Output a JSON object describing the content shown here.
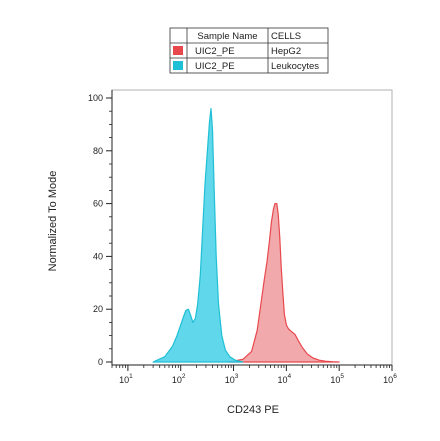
{
  "chart_data": {
    "type": "area",
    "xlabel": "CD243 PE",
    "ylabel": "Normalized To Mode",
    "x_scale": "log",
    "xlim": [
      5,
      1000000
    ],
    "ylim": [
      0,
      100
    ],
    "x_ticks": [
      {
        "base": "10",
        "exp": "1",
        "value": 10
      },
      {
        "base": "10",
        "exp": "2",
        "value": 100
      },
      {
        "base": "10",
        "exp": "3",
        "value": 1000
      },
      {
        "base": "10",
        "exp": "4",
        "value": 10000
      },
      {
        "base": "10",
        "exp": "5",
        "value": 100000
      },
      {
        "base": "10",
        "exp": "6",
        "value": 1000000
      }
    ],
    "y_ticks": [
      "0",
      "20",
      "40",
      "60",
      "80",
      "100"
    ],
    "legend": {
      "headers": [
        "Sample Name",
        "CELLS"
      ],
      "placement": "top-right"
    },
    "series": [
      {
        "sample": "UIC2_PE",
        "cells": "HepG2",
        "color": "#e8484d",
        "fill": "#f0a0a3",
        "x": [
          800,
          1500,
          2200,
          2800,
          3300,
          3800,
          4300,
          4800,
          5200,
          5700,
          6100,
          6600,
          7000,
          7500,
          8000,
          8600,
          9200,
          10000,
          11000,
          12500,
          14500,
          17000,
          20000,
          25000,
          32000,
          42000,
          55000,
          75000,
          100000
        ],
        "y": [
          0,
          1,
          4,
          12,
          22,
          31,
          38,
          46,
          53,
          58,
          60,
          60,
          56,
          47,
          36,
          26,
          18,
          14,
          12.5,
          11.5,
          10.5,
          8,
          5.5,
          3,
          1.5,
          0.7,
          0.3,
          0.1,
          0
        ]
      },
      {
        "sample": "UIC2_PE",
        "cells": "Leukocytes",
        "color": "#1fbfd5",
        "fill": "#4fd3e8",
        "x": [
          30,
          50,
          70,
          85,
          100,
          110,
          125,
          140,
          155,
          170,
          190,
          210,
          235,
          260,
          290,
          320,
          350,
          375,
          400,
          430,
          470,
          520,
          600,
          700,
          850,
          1100,
          1500
        ],
        "y": [
          0,
          2,
          6,
          10,
          14,
          16.5,
          19.5,
          20,
          17.5,
          15,
          16.5,
          22,
          33,
          50,
          68,
          80,
          91,
          96,
          88,
          65,
          40,
          22,
          10,
          4.5,
          2,
          0.6,
          0
        ]
      }
    ]
  }
}
